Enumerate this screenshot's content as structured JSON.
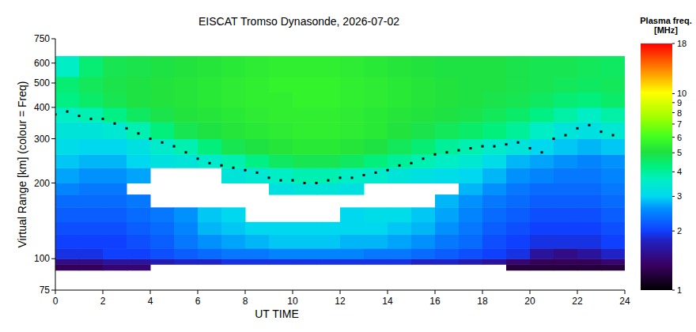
{
  "chart_data": {
    "type": "heatmap",
    "title": "EISCAT Tromso Dynasonde, 2026-07-02",
    "x_label": "UT TIME",
    "y_label": "Virtual Range [km] (colour = Freq)",
    "xlim": [
      0,
      24
    ],
    "xticks": [
      0,
      2,
      4,
      6,
      8,
      10,
      12,
      14,
      16,
      18,
      20,
      22,
      24
    ],
    "ylim": [
      75,
      750
    ],
    "yticks": [
      75,
      100,
      200,
      300,
      400,
      500,
      600,
      750
    ],
    "log": "y",
    "x_edges": [
      0,
      1,
      2,
      3,
      4,
      5,
      6,
      7,
      8,
      9,
      10,
      11,
      12,
      13,
      14,
      15,
      16,
      17,
      18,
      19,
      20,
      21,
      22,
      23,
      24
    ],
    "y_edges": [
      90,
      95,
      100,
      110,
      125,
      140,
      160,
      180,
      200,
      230,
      260,
      300,
      350,
      400,
      460,
      530,
      640
    ],
    "cells": [
      [
        1.3,
        1.3,
        1.4,
        1.4,
        null,
        null,
        null,
        null,
        null,
        null,
        null,
        null,
        null,
        null,
        null,
        null,
        null,
        null,
        null,
        1.2,
        1.2,
        1.2,
        1.2,
        1.2
      ],
      [
        1.5,
        1.5,
        1.6,
        1.6,
        1.7,
        1.8,
        1.8,
        1.9,
        1.9,
        1.9,
        1.9,
        1.9,
        1.9,
        1.9,
        1.9,
        1.8,
        1.8,
        1.7,
        1.6,
        1.4,
        1.3,
        1.3,
        1.3,
        1.4
      ],
      [
        1.9,
        1.9,
        2.0,
        2.0,
        2.1,
        2.2,
        2.3,
        2.4,
        2.4,
        2.5,
        2.5,
        2.5,
        2.5,
        2.4,
        2.4,
        2.3,
        2.2,
        2.1,
        2.0,
        1.9,
        1.6,
        1.5,
        1.6,
        1.8
      ],
      [
        2.0,
        2.0,
        2.0,
        2.1,
        2.2,
        2.4,
        2.6,
        2.7,
        2.8,
        2.9,
        2.9,
        2.9,
        2.8,
        2.8,
        2.7,
        2.6,
        2.4,
        2.3,
        2.1,
        2.0,
        1.9,
        1.9,
        1.9,
        2.0
      ],
      [
        2.1,
        2.1,
        2.1,
        2.2,
        2.3,
        2.5,
        2.8,
        2.9,
        3.0,
        3.0,
        3.0,
        3.0,
        3.0,
        3.0,
        2.9,
        2.8,
        2.6,
        2.4,
        2.2,
        2.1,
        2.0,
        2.0,
        2.0,
        2.1
      ],
      [
        2.2,
        2.2,
        2.2,
        2.3,
        2.4,
        2.6,
        2.9,
        3.0,
        null,
        null,
        null,
        null,
        3.0,
        3.1,
        3.1,
        2.9,
        2.7,
        2.5,
        2.3,
        2.2,
        2.1,
        2.1,
        2.1,
        2.2
      ],
      [
        2.3,
        2.3,
        2.3,
        2.4,
        null,
        null,
        null,
        null,
        null,
        null,
        null,
        null,
        null,
        null,
        null,
        null,
        2.8,
        2.6,
        2.4,
        2.3,
        2.2,
        2.2,
        2.2,
        2.3
      ],
      [
        2.5,
        2.4,
        2.4,
        null,
        null,
        null,
        null,
        null,
        null,
        3.2,
        3.3,
        3.3,
        3.2,
        null,
        null,
        null,
        null,
        2.8,
        2.6,
        2.4,
        2.3,
        2.3,
        2.3,
        2.4
      ],
      [
        2.7,
        2.6,
        2.6,
        2.7,
        null,
        null,
        null,
        3.3,
        3.4,
        3.6,
        3.8,
        3.8,
        3.6,
        3.5,
        3.3,
        3.2,
        3.1,
        3.0,
        2.8,
        2.6,
        2.5,
        2.4,
        2.4,
        2.5
      ],
      [
        2.9,
        2.8,
        2.8,
        3.0,
        3.2,
        3.3,
        3.5,
        3.8,
        4.2,
        4.6,
        4.8,
        4.8,
        4.6,
        4.3,
        4.0,
        3.8,
        3.6,
        3.4,
        3.1,
        2.8,
        2.7,
        2.6,
        2.5,
        2.6
      ],
      [
        3.1,
        3.0,
        3.0,
        3.2,
        3.5,
        3.8,
        4.3,
        4.8,
        5.0,
        5.2,
        5.3,
        5.3,
        5.2,
        5.0,
        4.7,
        4.4,
        4.0,
        3.8,
        3.5,
        3.3,
        3.0,
        2.9,
        2.8,
        2.9
      ],
      [
        3.3,
        3.3,
        3.4,
        3.8,
        4.3,
        4.8,
        5.0,
        5.2,
        5.3,
        5.4,
        5.5,
        5.5,
        5.4,
        5.3,
        5.1,
        4.9,
        4.7,
        4.5,
        4.3,
        4.0,
        3.6,
        3.3,
        3.2,
        3.4
      ],
      [
        3.6,
        3.8,
        4.2,
        4.6,
        4.9,
        5.1,
        5.2,
        5.3,
        5.4,
        5.5,
        5.5,
        5.5,
        5.4,
        5.3,
        5.2,
        5.1,
        5.0,
        4.9,
        4.7,
        4.5,
        4.2,
        3.9,
        3.6,
        3.9
      ],
      [
        4.2,
        4.5,
        4.8,
        5.0,
        5.1,
        5.2,
        5.3,
        5.4,
        5.5,
        5.5,
        5.6,
        5.6,
        5.5,
        5.4,
        5.3,
        5.2,
        5.1,
        5.0,
        4.9,
        4.8,
        4.6,
        4.4,
        4.3,
        4.5
      ],
      [
        4.4,
        4.7,
        4.9,
        5.0,
        5.1,
        5.2,
        5.3,
        5.4,
        5.5,
        5.6,
        5.6,
        5.6,
        5.5,
        5.4,
        5.3,
        5.2,
        5.1,
        5.0,
        5.0,
        4.9,
        4.8,
        4.7,
        4.6,
        4.7
      ],
      [
        3.6,
        4.4,
        4.8,
        4.9,
        5.0,
        5.1,
        5.2,
        5.3,
        5.4,
        5.5,
        5.5,
        5.5,
        5.4,
        5.3,
        5.2,
        5.1,
        5.0,
        5.0,
        5.0,
        4.9,
        4.8,
        4.8,
        4.7,
        4.6
      ]
    ],
    "colorbar_title": "Plasma freq.",
    "colorbar_unit": "[MHz]",
    "colorbar_range": [
      1,
      18
    ],
    "colorbar_ticks": [
      1,
      2,
      3,
      4,
      5,
      6,
      7,
      8,
      9,
      10,
      18
    ],
    "series": [
      {
        "type": "scatter",
        "color": "#000000",
        "marker": "square",
        "x": [
          0,
          0.5,
          1,
          1.5,
          2,
          2.5,
          3,
          3.5,
          4,
          4.5,
          5,
          5.5,
          6,
          6.5,
          7,
          7.5,
          8,
          8.5,
          9,
          9.5,
          10,
          10.5,
          11,
          11.5,
          12,
          12.5,
          13,
          13.5,
          14,
          14.5,
          15,
          15.5,
          16,
          16.5,
          17,
          17.5,
          18,
          18.5,
          19,
          19.5,
          20,
          20.5,
          21,
          21.5,
          22,
          22.5,
          23,
          23.5
        ],
        "values": [
          375,
          385,
          370,
          360,
          360,
          345,
          330,
          315,
          300,
          290,
          280,
          265,
          250,
          240,
          235,
          230,
          225,
          220,
          210,
          205,
          205,
          200,
          200,
          205,
          210,
          210,
          215,
          220,
          225,
          235,
          240,
          250,
          260,
          265,
          270,
          275,
          280,
          280,
          285,
          290,
          275,
          265,
          300,
          310,
          330,
          340,
          320,
          310
        ]
      }
    ]
  }
}
